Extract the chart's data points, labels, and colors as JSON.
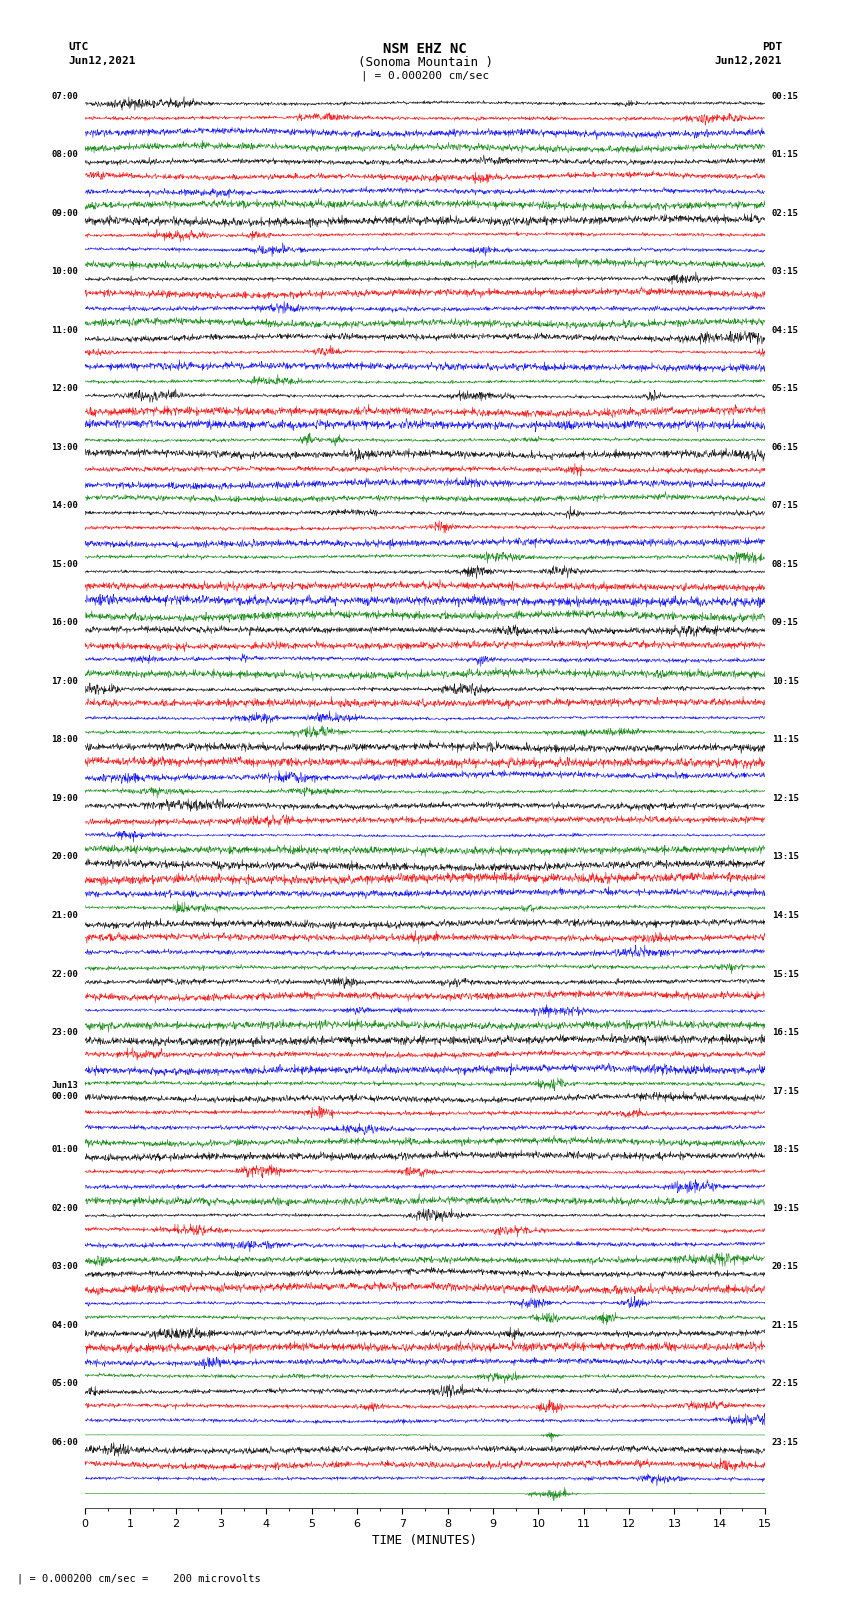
{
  "title_line1": "NSM EHZ NC",
  "title_line2": "(Sonoma Mountain )",
  "title_scale": "| = 0.000200 cm/sec",
  "label_utc": "UTC",
  "label_pdt": "PDT",
  "label_date_left": "Jun12,2021",
  "label_date_right": "Jun12,2021",
  "xlabel": "TIME (MINUTES)",
  "scale_label": "| = 0.000200 cm/sec =    200 microvolts",
  "utc_times": [
    "07:00",
    "08:00",
    "09:00",
    "10:00",
    "11:00",
    "12:00",
    "13:00",
    "14:00",
    "15:00",
    "16:00",
    "17:00",
    "18:00",
    "19:00",
    "20:00",
    "21:00",
    "22:00",
    "23:00",
    "Jun13\n00:00",
    "01:00",
    "02:00",
    "03:00",
    "04:00",
    "05:00",
    "06:00"
  ],
  "pdt_times": [
    "00:15",
    "01:15",
    "02:15",
    "03:15",
    "04:15",
    "05:15",
    "06:15",
    "07:15",
    "08:15",
    "09:15",
    "10:15",
    "11:15",
    "12:15",
    "13:15",
    "14:15",
    "15:15",
    "16:15",
    "17:15",
    "18:15",
    "19:15",
    "20:15",
    "21:15",
    "22:15",
    "23:15"
  ],
  "n_rows": 24,
  "traces_per_row": 4,
  "colors": [
    "black",
    "red",
    "blue",
    "green"
  ],
  "time_min": 0,
  "time_max": 15,
  "bg_color": "white",
  "fig_width": 8.5,
  "fig_height": 16.13,
  "seed": 42,
  "noise_scale": 0.25,
  "event_row": 22,
  "event_time": 10.3,
  "event_amplitude": 3.0,
  "event_color_idx": 3,
  "event2_row": 23,
  "event2_amplitude": 4.5
}
